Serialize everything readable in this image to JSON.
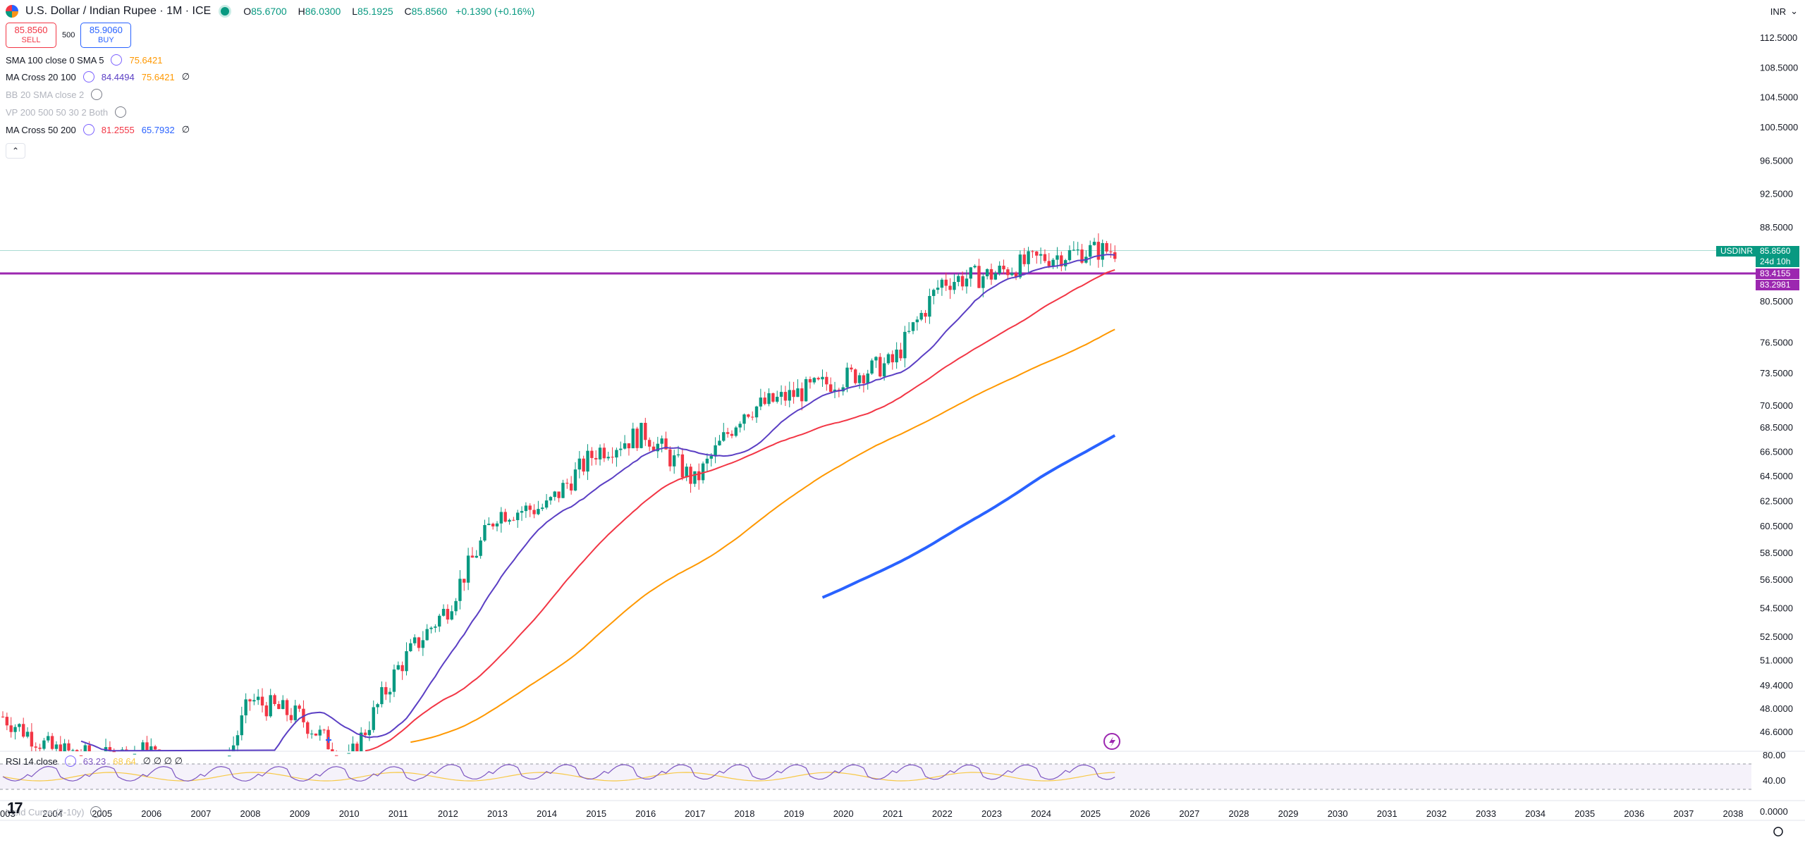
{
  "header": {
    "symbol_title": "U.S. Dollar / Indian Rupee · 1M · ICE",
    "open_label": "O",
    "open": "85.6700",
    "high_label": "H",
    "high": "86.0300",
    "low_label": "L",
    "low": "85.1925",
    "close_label": "C",
    "close": "85.8560",
    "change": "+0.1390 (+0.16%)"
  },
  "trade": {
    "sell_price": "85.8560",
    "sell_label": "SELL",
    "spread": "500",
    "buy_price": "85.9060",
    "buy_label": "BUY"
  },
  "currency": "INR",
  "indicators": [
    {
      "name": "SMA 100 close 0 SMA 5",
      "v1": "75.6421",
      "v1_color": "#ff9800",
      "v2": "",
      "extra": ""
    },
    {
      "name": "MA Cross 20 100",
      "v1": "84.4494",
      "v1_color": "#5b3fc4",
      "v2": "75.6421",
      "v2_color": "#ff9800",
      "extra": "∅"
    },
    {
      "name": "BB 20 SMA close 2",
      "hidden": true
    },
    {
      "name": "VP 200 500 50 30 2 Both",
      "hidden": true
    },
    {
      "name": "MA Cross 50 200",
      "v1": "81.2555",
      "v1_color": "#f23645",
      "v2": "65.7932",
      "v2_color": "#2962ff",
      "extra": "∅"
    }
  ],
  "rsi": {
    "name": "RSI 14 close",
    "v1": "63.23",
    "v2": "68.64",
    "extra": "∅ ∅ ∅ ∅"
  },
  "yield_curve": {
    "name": "Yield Curve (2-10y)"
  },
  "price_labels": {
    "symbol_tag": "USDINR",
    "last": "85.8560",
    "countdown": "24d 10h",
    "line1": "83.4155",
    "line2": "83.2981"
  },
  "colors": {
    "up": "#089981",
    "down": "#f23645",
    "ma20": "#5b3fc4",
    "ma100": "#ff9800",
    "ma50": "#f23645",
    "ma200": "#2962ff",
    "hline": "#9c27b0"
  },
  "chart_data": {
    "type": "candlestick",
    "price_axis_ticks": [
      "112.5000",
      "108.5000",
      "104.5000",
      "100.5000",
      "96.5000",
      "92.5000",
      "88.5000",
      "80.5000",
      "76.5000",
      "73.5000",
      "70.5000",
      "68.5000",
      "66.5000",
      "64.5000",
      "62.5000",
      "60.5000",
      "58.5000",
      "56.5000",
      "54.5000",
      "52.5000",
      "51.0000",
      "49.4000",
      "48.0000",
      "46.6000"
    ],
    "rsi_axis_ticks": [
      "80.00",
      "40.00"
    ],
    "yield_axis_ticks": [
      "0.0000"
    ],
    "x_ticks": [
      "003",
      "2004",
      "2005",
      "2006",
      "2007",
      "2008",
      "2009",
      "2010",
      "2011",
      "2012",
      "2013",
      "2014",
      "2015",
      "2016",
      "2017",
      "2018",
      "2019",
      "2020",
      "2021",
      "2022",
      "2023",
      "2024",
      "2025",
      "2026",
      "2027",
      "2028",
      "2029",
      "2030",
      "2031",
      "2032",
      "2033",
      "2034",
      "2035",
      "2036",
      "2037",
      "2038"
    ],
    "horizontal_line": 83.3,
    "closes_yearly": [
      {
        "year": 2003,
        "value": 47.5
      },
      {
        "year": 2004,
        "value": 45.5
      },
      {
        "year": 2005,
        "value": 45.0
      },
      {
        "year": 2006,
        "value": 45.5
      },
      {
        "year": 2007,
        "value": 40.5
      },
      {
        "year": 2008,
        "value": 48.5
      },
      {
        "year": 2009,
        "value": 47.5
      },
      {
        "year": 2010,
        "value": 44.8
      },
      {
        "year": 2011,
        "value": 50.5
      },
      {
        "year": 2012,
        "value": 54.5
      },
      {
        "year": 2013,
        "value": 61.5
      },
      {
        "year": 2014,
        "value": 62.0
      },
      {
        "year": 2015,
        "value": 66.5
      },
      {
        "year": 2016,
        "value": 68.0
      },
      {
        "year": 2017,
        "value": 64.0
      },
      {
        "year": 2018,
        "value": 70.0
      },
      {
        "year": 2019,
        "value": 71.5
      },
      {
        "year": 2020,
        "value": 73.0
      },
      {
        "year": 2021,
        "value": 74.5
      },
      {
        "year": 2022,
        "value": 82.5
      },
      {
        "year": 2023,
        "value": 83.2
      },
      {
        "year": 2024,
        "value": 85.0
      },
      {
        "year": 2025,
        "value": 85.86
      }
    ]
  }
}
